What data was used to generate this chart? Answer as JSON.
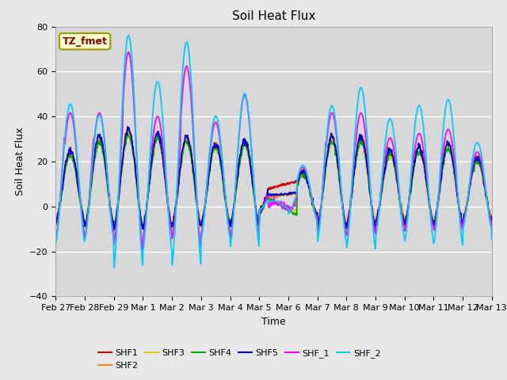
{
  "title": "Soil Heat Flux",
  "xlabel": "Time",
  "ylabel": "Soil Heat Flux",
  "ylim": [
    -40,
    80
  ],
  "series_names": [
    "SHF1",
    "SHF2",
    "SHF3",
    "SHF4",
    "SHF5",
    "SHF_1",
    "SHF_2"
  ],
  "series_colors": [
    "#cc0000",
    "#ff8800",
    "#ddcc00",
    "#00aa00",
    "#0000cc",
    "#ff00ff",
    "#00ccff"
  ],
  "xtick_labels": [
    "Feb 27",
    "Feb 28",
    "Feb 29",
    "Mar 1",
    "Mar 2",
    "Mar 3",
    "Mar 4",
    "Mar 5",
    "Mar 6",
    "Mar 7",
    "Mar 8",
    "Mar 9",
    "Mar 10",
    "Mar 11",
    "Mar 12",
    "Mar 13"
  ],
  "annotation_text": "TZ_fmet",
  "annotation_box_color": "#ffffcc",
  "annotation_text_color": "#880000",
  "background_color": "#e8e8e8",
  "plot_bg_color": "#d8d8d8",
  "n_points": 960
}
